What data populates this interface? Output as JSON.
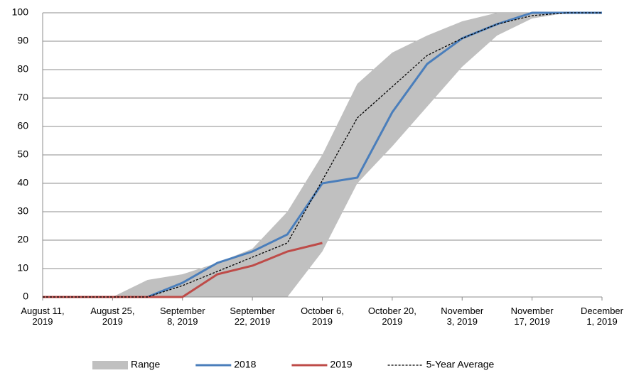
{
  "chart_data": {
    "type": "line",
    "categories": [
      "August 11,\n2019",
      null,
      "August 25,\n2019",
      null,
      "September\n8, 2019",
      null,
      "September\n22, 2019",
      null,
      "October 6,\n2019",
      null,
      "October 20,\n2019",
      null,
      "November\n3, 2019",
      null,
      "November\n17, 2019",
      null,
      "December\n1, 2019"
    ],
    "ylim": [
      0,
      100
    ],
    "yticks": [
      0,
      10,
      20,
      30,
      40,
      50,
      60,
      70,
      80,
      90,
      100
    ],
    "grid": true,
    "legend": "bottom",
    "series": [
      {
        "name": "Range",
        "color": "#c0c0c0",
        "band": true,
        "low": [
          0,
          0,
          0,
          0,
          0,
          0,
          0,
          0,
          16,
          40,
          53,
          67,
          81,
          92,
          98,
          100,
          100
        ],
        "high": [
          0,
          0,
          0,
          6,
          8,
          12,
          17,
          30,
          50,
          75,
          86,
          92,
          97,
          100,
          100,
          100,
          100
        ]
      },
      {
        "name": "2018",
        "color": "#4a7ebb",
        "values": [
          0,
          0,
          0,
          0,
          5,
          12,
          16,
          22,
          40,
          42,
          65,
          82,
          91,
          96,
          100,
          100,
          100
        ]
      },
      {
        "name": "2019",
        "color": "#be4b48",
        "values": [
          0,
          0,
          0,
          0,
          0,
          8,
          11,
          16,
          19,
          null,
          null,
          null,
          null,
          null,
          null,
          null,
          null
        ]
      },
      {
        "name": "5-Year Average",
        "color": "#000000",
        "dashed": true,
        "values": [
          0,
          0,
          0,
          0,
          4,
          9,
          14,
          19,
          41,
          63,
          74,
          85,
          91,
          96,
          99,
          100,
          100
        ]
      }
    ]
  }
}
